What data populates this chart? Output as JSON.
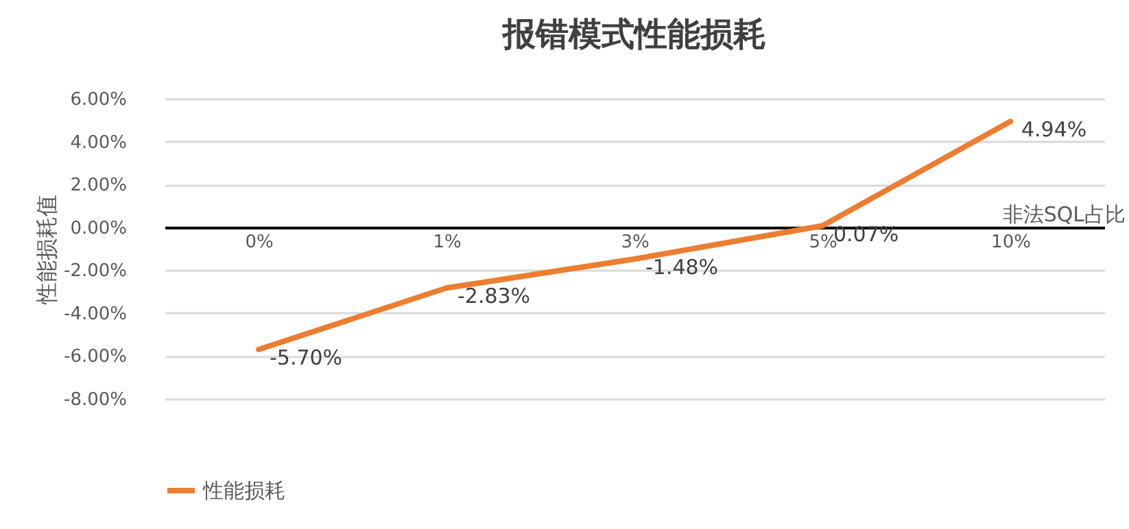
{
  "chart_data": {
    "type": "line",
    "title": "报错模式性能损耗",
    "xlabel": "非法SQL占比",
    "ylabel": "性能损耗值",
    "categories": [
      "0%",
      "1%",
      "3%",
      "5%",
      "10%"
    ],
    "series": [
      {
        "name": "性能损耗",
        "color": "#ed7d31",
        "values": [
          -5.7,
          -2.83,
          -1.48,
          0.07,
          4.94
        ],
        "value_labels": [
          "-5.70%",
          "-2.83%",
          "-1.48%",
          "0.07%",
          "4.94%"
        ]
      }
    ],
    "ylim": [
      -8,
      6
    ],
    "yticks": [
      {
        "value": -8,
        "label": "-8.00%"
      },
      {
        "value": -6,
        "label": "-6.00%"
      },
      {
        "value": -4,
        "label": "-4.00%"
      },
      {
        "value": -2,
        "label": "-2.00%"
      },
      {
        "value": 0,
        "label": "0.00%"
      },
      {
        "value": 2,
        "label": "2.00%"
      },
      {
        "value": 4,
        "label": "4.00%"
      },
      {
        "value": 6,
        "label": "6.00%"
      }
    ],
    "grid": "y",
    "legend": "bottom",
    "marker": "none",
    "line_style": "solid"
  }
}
